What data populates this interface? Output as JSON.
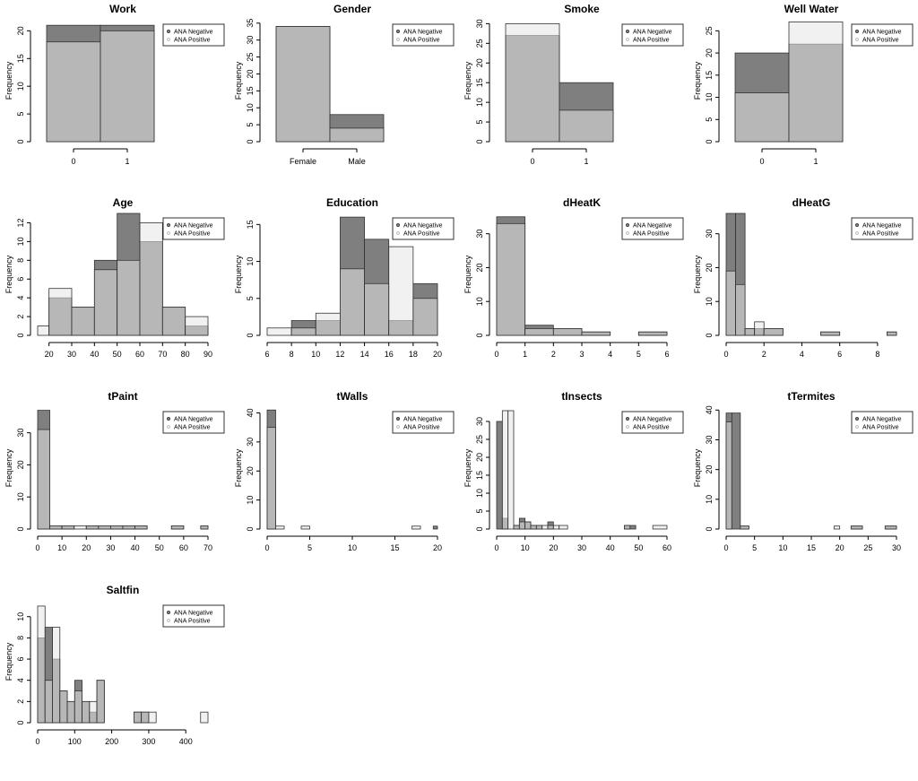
{
  "legend_labels": [
    "ANA Negative",
    "ANA Positive"
  ],
  "colors": {
    "negative": "#7f7f7f",
    "positive": "#e6e6e6",
    "overlap": "#b0b0b0",
    "stroke": "#333333"
  },
  "chart_data": [
    {
      "type": "bar",
      "title": "Work",
      "ylabel": "Frequency",
      "xlabel": "",
      "ylim": [
        0,
        22
      ],
      "yticks": [
        0,
        5,
        10,
        15,
        20
      ],
      "x_mode": "category",
      "categories": [
        "0",
        "1"
      ],
      "legend": "top-right",
      "series": [
        {
          "name": "ANA Negative",
          "values": [
            21,
            21
          ]
        },
        {
          "name": "ANA Positive",
          "values": [
            18,
            20
          ]
        }
      ]
    },
    {
      "type": "bar",
      "title": "Gender",
      "ylabel": "Frequency",
      "xlabel": "",
      "ylim": [
        0,
        36
      ],
      "yticks": [
        0,
        5,
        10,
        15,
        20,
        25,
        30,
        35
      ],
      "x_mode": "category",
      "categories": [
        "Female",
        "Male"
      ],
      "legend": "top-right",
      "series": [
        {
          "name": "ANA Negative",
          "values": [
            34,
            8
          ]
        },
        {
          "name": "ANA Positive",
          "values": [
            34,
            4
          ]
        }
      ]
    },
    {
      "type": "bar",
      "title": "Smoke",
      "ylabel": "Frequency",
      "xlabel": "",
      "ylim": [
        0,
        31
      ],
      "yticks": [
        0,
        5,
        10,
        15,
        20,
        25,
        30
      ],
      "x_mode": "category",
      "categories": [
        "0",
        "1"
      ],
      "legend": "top-right",
      "series": [
        {
          "name": "ANA Negative",
          "values": [
            27,
            15
          ]
        },
        {
          "name": "ANA Positive",
          "values": [
            30,
            8
          ]
        }
      ]
    },
    {
      "type": "bar",
      "title": "Well Water",
      "ylabel": "Frequency",
      "xlabel": "",
      "ylim": [
        0,
        27.5
      ],
      "yticks": [
        0,
        5,
        10,
        15,
        20,
        25
      ],
      "x_mode": "category",
      "categories": [
        "0",
        "1"
      ],
      "legend": "top-right",
      "series": [
        {
          "name": "ANA Negative",
          "values": [
            20,
            22
          ]
        },
        {
          "name": "ANA Positive",
          "values": [
            11,
            27
          ]
        }
      ]
    },
    {
      "type": "bar",
      "title": "Age",
      "ylabel": "Frequency",
      "xlabel": "",
      "ylim": [
        0,
        13
      ],
      "yticks": [
        0,
        2,
        4,
        6,
        8,
        10,
        12
      ],
      "x_mode": "histogram",
      "xlim": [
        15,
        90
      ],
      "xticks": [
        20,
        30,
        40,
        50,
        60,
        70,
        80,
        90
      ],
      "bins": [
        [
          15,
          20
        ],
        [
          20,
          30
        ],
        [
          30,
          40
        ],
        [
          40,
          50
        ],
        [
          50,
          60
        ],
        [
          60,
          70
        ],
        [
          70,
          80
        ],
        [
          80,
          90
        ]
      ],
      "legend": "top-right",
      "series": [
        {
          "name": "ANA Negative",
          "values": [
            0,
            4,
            3,
            8,
            13,
            10,
            3,
            1
          ]
        },
        {
          "name": "ANA Positive",
          "values": [
            1,
            5,
            3,
            7,
            8,
            12,
            3,
            2
          ]
        }
      ]
    },
    {
      "type": "bar",
      "title": "Education",
      "ylabel": "Frequency",
      "xlabel": "",
      "ylim": [
        0,
        16.5
      ],
      "yticks": [
        0,
        5,
        10,
        15
      ],
      "x_mode": "histogram",
      "xlim": [
        6,
        20
      ],
      "xticks": [
        6,
        8,
        10,
        12,
        14,
        16,
        18,
        20
      ],
      "bins": [
        [
          6,
          8
        ],
        [
          8,
          10
        ],
        [
          10,
          12
        ],
        [
          12,
          14
        ],
        [
          14,
          16
        ],
        [
          16,
          18
        ],
        [
          18,
          20
        ]
      ],
      "legend": "top-right",
      "series": [
        {
          "name": "ANA Negative",
          "values": [
            0,
            2,
            2,
            16,
            13,
            2,
            7
          ]
        },
        {
          "name": "ANA Positive",
          "values": [
            1,
            1,
            3,
            9,
            7,
            12,
            5
          ]
        }
      ]
    },
    {
      "type": "bar",
      "title": "dHeatK",
      "ylabel": "Frequency",
      "xlabel": "",
      "ylim": [
        0,
        36
      ],
      "yticks": [
        0,
        10,
        20,
        30
      ],
      "x_mode": "histogram",
      "xlim": [
        0,
        6
      ],
      "xticks": [
        0,
        1,
        2,
        3,
        4,
        5,
        6
      ],
      "bins": [
        [
          0,
          1
        ],
        [
          1,
          2
        ],
        [
          2,
          3
        ],
        [
          3,
          4
        ],
        [
          4,
          5
        ],
        [
          5,
          6
        ]
      ],
      "legend": "top-right",
      "series": [
        {
          "name": "ANA Negative",
          "values": [
            35,
            3,
            2,
            1,
            0,
            1
          ]
        },
        {
          "name": "ANA Positive",
          "values": [
            33,
            2,
            2,
            1,
            0,
            1
          ]
        }
      ]
    },
    {
      "type": "bar",
      "title": "dHeatG",
      "ylabel": "Frequency",
      "xlabel": "",
      "ylim": [
        0,
        36
      ],
      "yticks": [
        0,
        10,
        20,
        30
      ],
      "x_mode": "histogram",
      "xlim": [
        0,
        9
      ],
      "xticks": [
        0,
        2,
        4,
        6,
        8
      ],
      "bins": [
        [
          0,
          0.5
        ],
        [
          0.5,
          1
        ],
        [
          1,
          1.5
        ],
        [
          1.5,
          2
        ],
        [
          2,
          3
        ],
        [
          3,
          5
        ],
        [
          5,
          6
        ],
        [
          6,
          8.5
        ],
        [
          8.5,
          9
        ]
      ],
      "legend": "top-right",
      "series": [
        {
          "name": "ANA Negative",
          "values": [
            36,
            36,
            2,
            2,
            2,
            0,
            1,
            0,
            1
          ]
        },
        {
          "name": "ANA Positive",
          "values": [
            19,
            15,
            2,
            4,
            2,
            0,
            1,
            0,
            1
          ]
        }
      ]
    },
    {
      "type": "bar",
      "title": "tPaint",
      "ylabel": "Frequency",
      "xlabel": "",
      "ylim": [
        0,
        38
      ],
      "yticks": [
        0,
        10,
        20,
        30
      ],
      "x_mode": "histogram",
      "xlim": [
        0,
        70
      ],
      "xticks": [
        0,
        10,
        20,
        30,
        40,
        50,
        60,
        70
      ],
      "bins": [
        [
          0,
          5
        ],
        [
          5,
          10
        ],
        [
          10,
          15
        ],
        [
          15,
          20
        ],
        [
          20,
          25
        ],
        [
          25,
          30
        ],
        [
          30,
          35
        ],
        [
          35,
          40
        ],
        [
          40,
          45
        ],
        [
          45,
          55
        ],
        [
          55,
          60
        ],
        [
          60,
          67
        ],
        [
          67,
          70
        ]
      ],
      "legend": "top-right",
      "series": [
        {
          "name": "ANA Negative",
          "values": [
            37,
            1,
            1,
            0,
            1,
            1,
            1,
            1,
            1,
            0,
            1,
            0,
            1
          ]
        },
        {
          "name": "ANA Positive",
          "values": [
            31,
            1,
            1,
            1,
            1,
            1,
            1,
            1,
            1,
            0,
            1,
            0,
            1
          ]
        }
      ]
    },
    {
      "type": "bar",
      "title": "tWalls",
      "ylabel": "Frequency",
      "xlabel": "",
      "ylim": [
        0,
        42
      ],
      "yticks": [
        0,
        10,
        20,
        30,
        40
      ],
      "x_mode": "histogram",
      "xlim": [
        0,
        20
      ],
      "xticks": [
        0,
        5,
        10,
        15,
        20
      ],
      "bins": [
        [
          0,
          1
        ],
        [
          1,
          2
        ],
        [
          2,
          4
        ],
        [
          4,
          5
        ],
        [
          5,
          17
        ],
        [
          17,
          18
        ],
        [
          18,
          19.5
        ],
        [
          19.5,
          20
        ]
      ],
      "legend": "top-right",
      "series": [
        {
          "name": "ANA Negative",
          "values": [
            41,
            0,
            0,
            0,
            0,
            0,
            0,
            1
          ]
        },
        {
          "name": "ANA Positive",
          "values": [
            35,
            1,
            0,
            1,
            0,
            1,
            0,
            0
          ]
        }
      ]
    },
    {
      "type": "bar",
      "title": "tInsects",
      "ylabel": "Frequency",
      "xlabel": "",
      "ylim": [
        0,
        34
      ],
      "yticks": [
        0,
        5,
        10,
        15,
        20,
        25,
        30
      ],
      "x_mode": "histogram",
      "xlim": [
        0,
        60
      ],
      "xticks": [
        0,
        10,
        20,
        30,
        40,
        50,
        60
      ],
      "bins": [
        [
          0,
          2
        ],
        [
          2,
          4
        ],
        [
          4,
          6
        ],
        [
          6,
          8
        ],
        [
          8,
          10
        ],
        [
          10,
          12
        ],
        [
          12,
          14
        ],
        [
          14,
          16
        ],
        [
          16,
          18
        ],
        [
          18,
          20
        ],
        [
          20,
          22
        ],
        [
          22,
          25
        ],
        [
          25,
          45
        ],
        [
          45,
          47
        ],
        [
          47,
          49
        ],
        [
          49,
          55
        ],
        [
          55,
          60
        ]
      ],
      "legend": "top-right",
      "series": [
        {
          "name": "ANA Negative",
          "values": [
            30,
            3,
            0,
            1,
            3,
            2,
            1,
            1,
            0,
            2,
            0,
            0,
            0,
            1,
            1,
            0,
            0
          ]
        },
        {
          "name": "ANA Positive",
          "values": [
            0,
            33,
            33,
            1,
            2,
            2,
            1,
            1,
            1,
            1,
            1,
            1,
            0,
            1,
            0,
            0,
            1
          ]
        }
      ]
    },
    {
      "type": "bar",
      "title": "tTermites",
      "ylabel": "Frequency",
      "xlabel": "",
      "ylim": [
        0,
        41
      ],
      "yticks": [
        0,
        10,
        20,
        30,
        40
      ],
      "x_mode": "histogram",
      "xlim": [
        0,
        30
      ],
      "xticks": [
        0,
        5,
        10,
        15,
        20,
        25,
        30
      ],
      "bins": [
        [
          0,
          1
        ],
        [
          1,
          2.5
        ],
        [
          2.5,
          4
        ],
        [
          4,
          19
        ],
        [
          19,
          20
        ],
        [
          20,
          22
        ],
        [
          22,
          24
        ],
        [
          24,
          28
        ],
        [
          28,
          30
        ]
      ],
      "legend": "top-right",
      "series": [
        {
          "name": "ANA Negative",
          "values": [
            39,
            39,
            1,
            0,
            0,
            0,
            1,
            0,
            1
          ]
        },
        {
          "name": "ANA Positive",
          "values": [
            36,
            0,
            1,
            0,
            1,
            0,
            1,
            0,
            1
          ]
        }
      ]
    },
    {
      "type": "bar",
      "title": "Saltfin",
      "ylabel": "Frequency",
      "xlabel": "",
      "ylim": [
        0,
        11.5
      ],
      "yticks": [
        0,
        2,
        4,
        6,
        8,
        10
      ],
      "x_mode": "histogram",
      "xlim": [
        0,
        460
      ],
      "xticks": [
        0,
        100,
        200,
        300,
        400
      ],
      "bins": [
        [
          0,
          20
        ],
        [
          20,
          40
        ],
        [
          40,
          60
        ],
        [
          60,
          80
        ],
        [
          80,
          100
        ],
        [
          100,
          120
        ],
        [
          120,
          140
        ],
        [
          140,
          160
        ],
        [
          160,
          180
        ],
        [
          180,
          260
        ],
        [
          260,
          280
        ],
        [
          280,
          300
        ],
        [
          300,
          320
        ],
        [
          320,
          440
        ],
        [
          440,
          460
        ]
      ],
      "legend": "top-right",
      "series": [
        {
          "name": "ANA Negative",
          "values": [
            8,
            9,
            6,
            3,
            2,
            4,
            2,
            1,
            4,
            0,
            1,
            1,
            0,
            0,
            0
          ]
        },
        {
          "name": "ANA Positive",
          "values": [
            11,
            4,
            9,
            3,
            2,
            3,
            2,
            2,
            4,
            0,
            1,
            1,
            1,
            0,
            1
          ]
        }
      ]
    }
  ]
}
